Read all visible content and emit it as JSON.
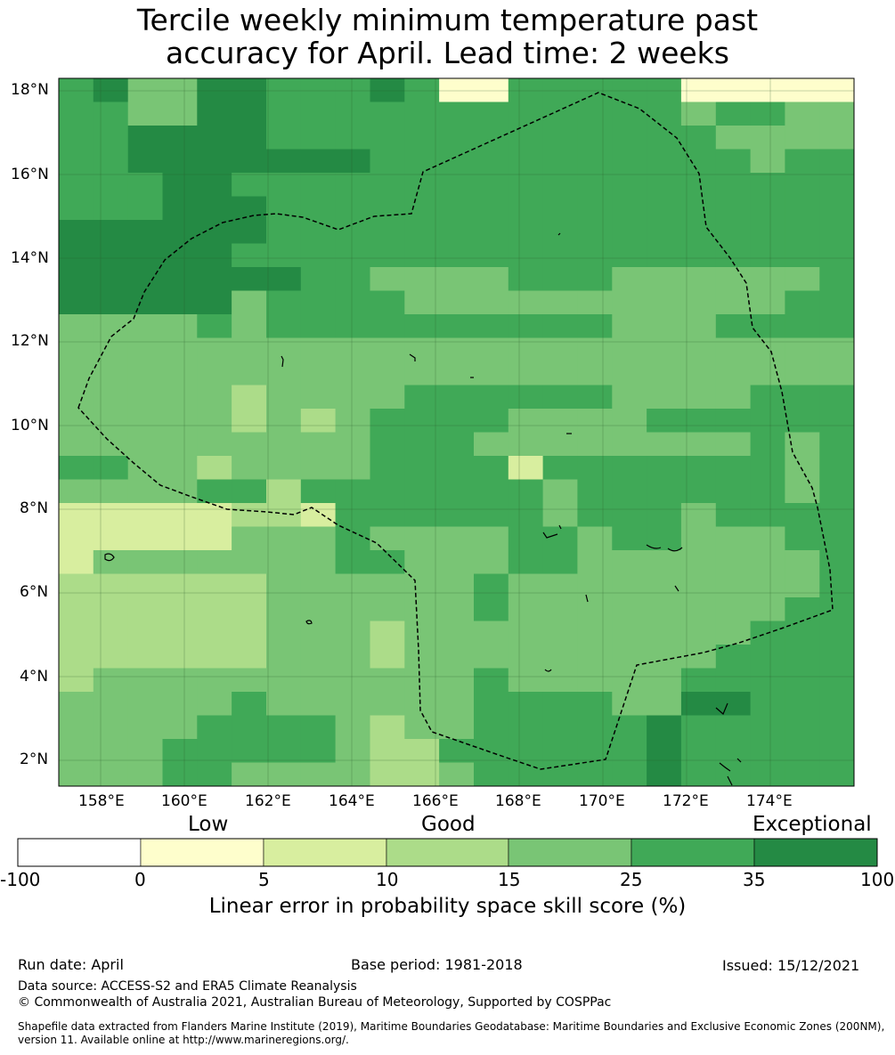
{
  "title_line1": "Tercile weekly minimum temperature past",
  "title_line2": "accuracy for April. Lead time: 2 weeks",
  "map": {
    "lon_ticks": [
      "158°E",
      "160°E",
      "162°E",
      "164°E",
      "166°E",
      "168°E",
      "170°E",
      "172°E",
      "174°E"
    ],
    "lat_ticks": [
      "18°N",
      "16°N",
      "14°N",
      "12°N",
      "10°N",
      "8°N",
      "6°N",
      "4°N",
      "2°N"
    ],
    "grid": true,
    "boundary": "dashed EEZ outline"
  },
  "colorbar": {
    "tier_labels": [
      "Low",
      "Good",
      "Exceptional"
    ],
    "ticks": [
      "-100",
      "0",
      "5",
      "10",
      "15",
      "25",
      "35",
      "100"
    ],
    "colors": [
      "#ffffff",
      "#fefecc",
      "#d8ee9f",
      "#acdc89",
      "#79c575",
      "#40a957",
      "#248a44"
    ],
    "title": "Linear error in probability space skill score (%)"
  },
  "footer": {
    "run_date": "Run date: April",
    "base_period": "Base period: 1981-2018",
    "issued": "Issued: 15/12/2021",
    "data_source": "Data source: ACCESS-S2 and ERA5 Climate Reanalysis",
    "copyright": "© Commonwealth of Australia 2021, Australian Bureau of Meteorology, Supported by COSPPac",
    "shapefile": "Shapefile data extracted from Flanders Marine Institute (2019), Maritime Boundaries Geodatabase: Maritime Boundaries and Exclusive Economic Zones (200NM), version 11. Available online at http://www.marineregions.org/."
  }
}
